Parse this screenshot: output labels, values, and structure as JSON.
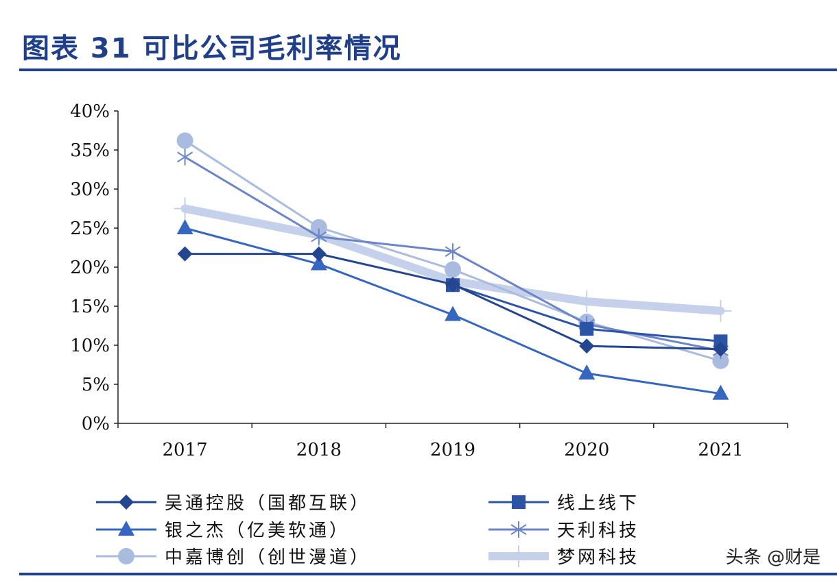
{
  "header": {
    "title": "图表 31   可比公司毛利率情况"
  },
  "watermark": "头条 @财是",
  "chart_data": {
    "type": "line",
    "title": "",
    "xlabel": "",
    "ylabel": "",
    "categories": [
      "2017",
      "2018",
      "2019",
      "2020",
      "2021"
    ],
    "ylim": [
      0,
      40
    ],
    "yticks": [
      "0%",
      "5%",
      "10%",
      "15%",
      "20%",
      "25%",
      "30%",
      "35%",
      "40%"
    ],
    "grid": false,
    "legend_position": "bottom",
    "series": [
      {
        "name": "吴通控股（国都互联）",
        "marker": "diamond",
        "color": "#23468f",
        "width": 3,
        "values": [
          21.7,
          21.7,
          17.8,
          9.9,
          9.5
        ]
      },
      {
        "name": "线上线下",
        "marker": "square",
        "color": "#2b54a6",
        "width": 3,
        "values": [
          null,
          null,
          17.7,
          12.1,
          10.5
        ]
      },
      {
        "name": "银之杰（亿美软通）",
        "marker": "triangle",
        "color": "#3566c0",
        "width": 3,
        "values": [
          25.0,
          20.4,
          13.9,
          6.4,
          3.8
        ]
      },
      {
        "name": "天利科技",
        "marker": "asterisk",
        "color": "#6a85c8",
        "width": 3,
        "values": [
          34.1,
          23.9,
          22.0,
          12.7,
          9.3
        ]
      },
      {
        "name": "中嘉博创（创世漫道）",
        "marker": "circle",
        "color": "#a9bce0",
        "width": 3,
        "values": [
          36.2,
          25.1,
          19.7,
          13.0,
          8.0
        ]
      },
      {
        "name": "梦网科技",
        "marker": "plus",
        "color": "#c5d1ea",
        "width": 12,
        "values": [
          27.5,
          24.1,
          18.2,
          15.6,
          14.4
        ]
      }
    ]
  }
}
